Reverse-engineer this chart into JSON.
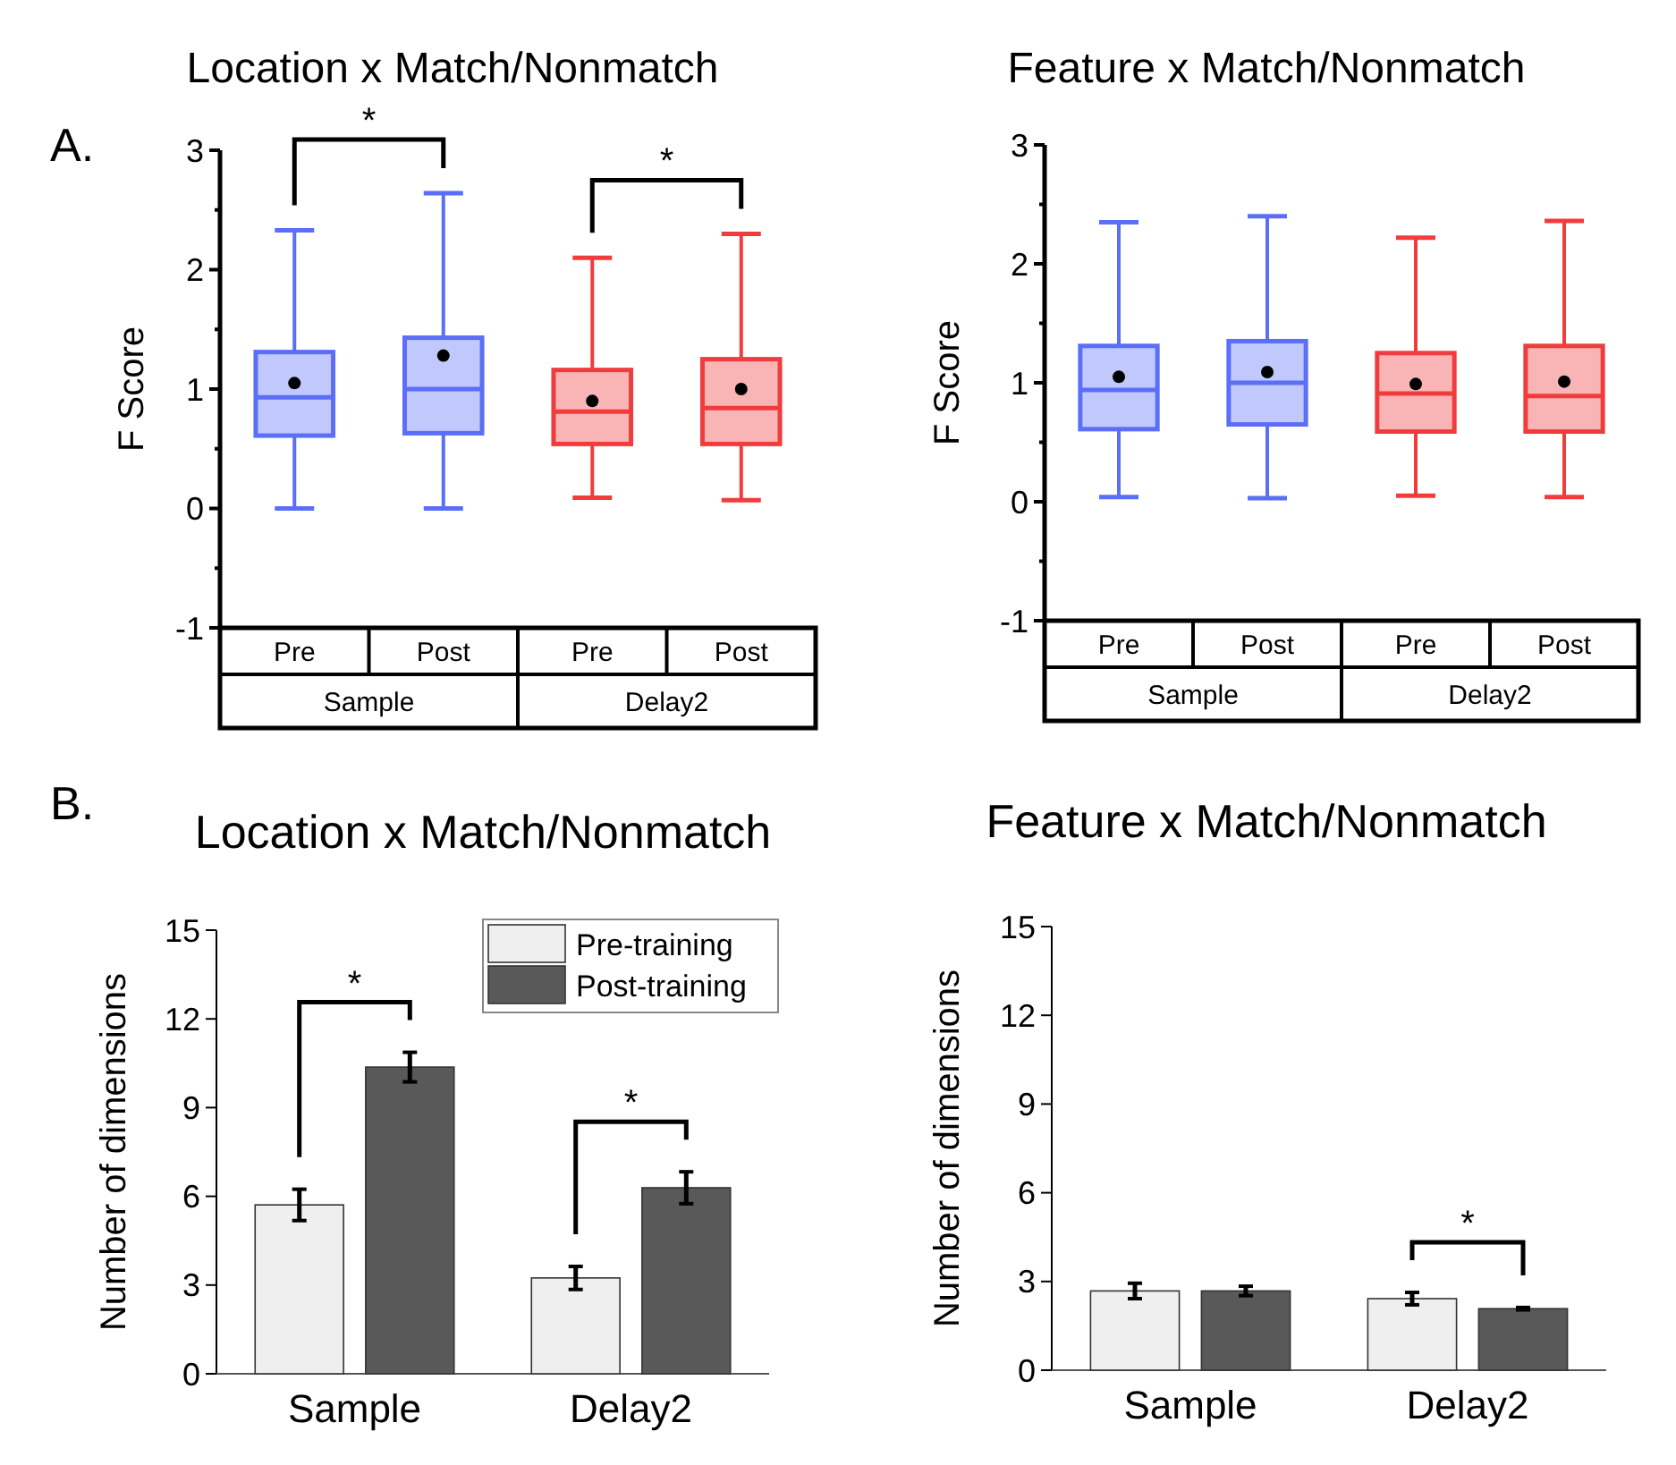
{
  "chart_data": [
    {
      "type": "box",
      "title": "Location x Match/Nonmatch",
      "ylabel": "F Score",
      "categories": [
        "Pre",
        "Post",
        "Pre",
        "Post"
      ],
      "ylim": [
        -1,
        3
      ],
      "yticks": [
        -1,
        {
          "value": -0.5,
          "label": null
        },
        0,
        {
          "value": 0.5,
          "label": null
        },
        1,
        {
          "value": 1.5,
          "label": null
        },
        2,
        {
          "value": 2.5,
          "label": null
        },
        3
      ],
      "grid": false,
      "annotations": [
        "A.",
        "*",
        "*",
        "Sample",
        "Delay2"
      ],
      "series": [
        {
          "color": "#5b6ef7",
          "boxes": [
            {
              "low": 0,
              "q1": 0.61,
              "median": 0.93,
              "q3": 1.31,
              "high": 2.33,
              "mean": 1.05
            },
            {
              "low": 0,
              "q1": 0.63,
              "median": 1.0,
              "q3": 1.43,
              "high": 2.64,
              "mean": 1.28
            },
            null,
            null
          ]
        },
        {
          "color": "#f03c3c",
          "boxes": [
            null,
            null,
            {
              "low": 0.09,
              "q1": 0.54,
              "median": 0.81,
              "q3": 1.16,
              "high": 2.1,
              "mean": 0.9
            },
            {
              "low": 0.07,
              "q1": 0.54,
              "median": 0.84,
              "q3": 1.25,
              "high": 2.3,
              "mean": 1.0
            }
          ]
        }
      ]
    },
    {
      "type": "box",
      "title": "Feature x Match/Nonmatch",
      "ylabel": "F Score",
      "categories": [
        "Pre",
        "Post",
        "Pre",
        "Post"
      ],
      "ylim": [
        -1,
        3
      ],
      "yticks": [
        -1,
        {
          "value": -0.5,
          "label": null
        },
        0,
        {
          "value": 0.5,
          "label": null
        },
        1,
        {
          "value": 1.5,
          "label": null
        },
        2,
        {
          "value": 2.5,
          "label": null
        },
        3
      ],
      "grid": false,
      "annotations": [
        "Sample",
        "Delay2"
      ],
      "series": [
        {
          "color": "#5b6ef7",
          "boxes": [
            {
              "low": 0.04,
              "q1": 0.61,
              "median": 0.94,
              "q3": 1.31,
              "high": 2.35,
              "mean": 1.05
            },
            {
              "low": 0.03,
              "q1": 0.65,
              "median": 1.0,
              "q3": 1.35,
              "high": 2.4,
              "mean": 1.09
            },
            null,
            null
          ]
        },
        {
          "color": "#f03c3c",
          "boxes": [
            null,
            null,
            {
              "low": 0.05,
              "q1": 0.59,
              "median": 0.91,
              "q3": 1.25,
              "high": 2.22,
              "mean": 0.99
            },
            {
              "low": 0.04,
              "q1": 0.59,
              "median": 0.89,
              "q3": 1.31,
              "high": 2.36,
              "mean": 1.01
            }
          ]
        }
      ]
    },
    {
      "type": "bar",
      "title": "Location x Match/Nonmatch",
      "ylabel": "Number of dimensions",
      "categories": [
        "Sample",
        "Delay2"
      ],
      "ylim": [
        0,
        15
      ],
      "yticks": [
        0,
        3,
        6,
        9,
        12,
        15
      ],
      "grid": false,
      "legend": "top right",
      "annotations": [
        "B.",
        "*",
        "*"
      ],
      "series": [
        {
          "name": "Pre-training",
          "color": "#efefef",
          "values": [
            5.71,
            3.24
          ],
          "errors": [
            0.53,
            0.39
          ]
        },
        {
          "name": "Post-training",
          "color": "#595959",
          "values": [
            10.37,
            6.29
          ],
          "errors": [
            0.5,
            0.54
          ]
        }
      ]
    },
    {
      "type": "bar",
      "title": "Feature x Match/Nonmatch",
      "ylabel": "Number of dimensions",
      "categories": [
        "Sample",
        "Delay2"
      ],
      "ylim": [
        0,
        15
      ],
      "yticks": [
        0,
        3,
        6,
        9,
        12,
        15
      ],
      "grid": false,
      "legend": false,
      "annotations": [
        "*"
      ],
      "series": [
        {
          "color": "#efefef",
          "values": [
            2.68,
            2.42
          ],
          "errors": [
            0.26,
            0.21
          ]
        },
        {
          "color": "#595959",
          "values": [
            2.68,
            2.08
          ],
          "errors": [
            0.16,
            0.04
          ]
        }
      ]
    }
  ]
}
